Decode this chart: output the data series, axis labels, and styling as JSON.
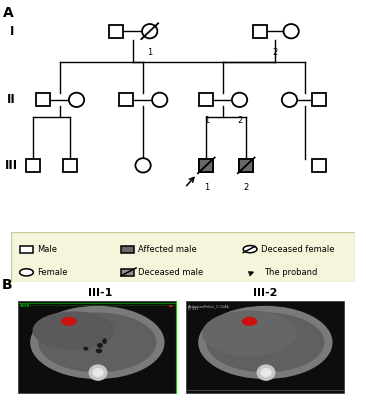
{
  "title_A": "A",
  "title_B": "B",
  "generation_labels": [
    "I",
    "II",
    "III"
  ],
  "legend_bg_color": "#f5f5dc",
  "legend_border_color": "#cccc99",
  "ct_label_1": "III-1",
  "ct_label_2": "III-2",
  "gray_fill": "#696969",
  "deceased_gray": "#909090",
  "white": "#ffffff",
  "black": "#000000",
  "ct_bg": "#111111",
  "ct_body_outer": "#888888",
  "ct_body_inner": "#aaaaaa",
  "ct_liver": "#777777",
  "ct_dark": "#222222",
  "ct_bright": "#dddddd",
  "ct_red": "#cc1111",
  "ct_green": "#00cc00"
}
